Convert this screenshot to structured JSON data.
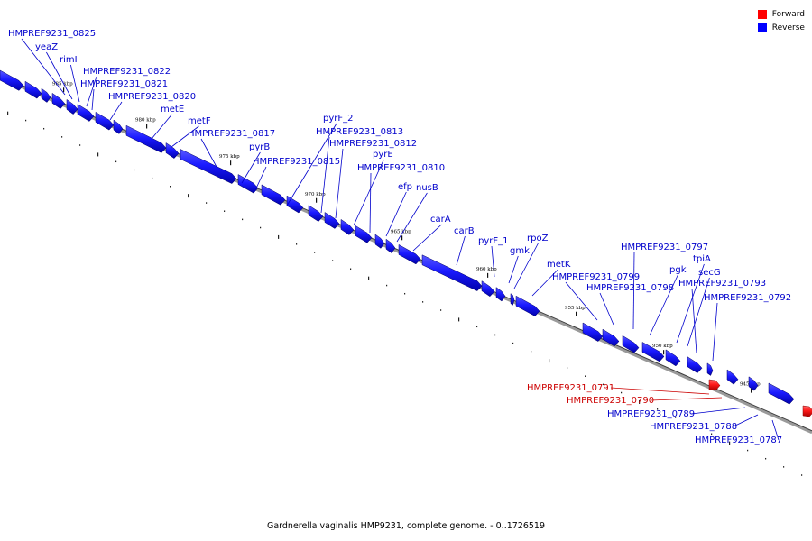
{
  "caption": "Gardnerella vaginalis HMP9231, complete genome. - 0..1726519",
  "legend": [
    {
      "label": "Forward",
      "color": "#ff0000"
    },
    {
      "label": "Reverse",
      "color": "#0000ff"
    }
  ],
  "scale_labels": [
    "985 kbp",
    "980 kbp",
    "975 kbp",
    "970 kbp",
    "965 kbp",
    "960 kbp",
    "955 kbp",
    "950 kbp",
    "945 kbp"
  ],
  "genes": [
    {
      "name": "HMPREF9231_0825",
      "strand": "reverse"
    },
    {
      "name": "yeaZ",
      "strand": "reverse"
    },
    {
      "name": "rimI",
      "strand": "reverse"
    },
    {
      "name": "HMPREF9231_0822",
      "strand": "reverse"
    },
    {
      "name": "HMPREF9231_0821",
      "strand": "reverse"
    },
    {
      "name": "HMPREF9231_0820",
      "strand": "reverse"
    },
    {
      "name": "metE",
      "strand": "reverse"
    },
    {
      "name": "metF",
      "strand": "reverse"
    },
    {
      "name": "HMPREF9231_0817",
      "strand": "reverse"
    },
    {
      "name": "pyrB",
      "strand": "reverse"
    },
    {
      "name": "HMPREF9231_0815",
      "strand": "reverse"
    },
    {
      "name": "pyrF_2",
      "strand": "reverse"
    },
    {
      "name": "HMPREF9231_0813",
      "strand": "reverse"
    },
    {
      "name": "HMPREF9231_0812",
      "strand": "reverse"
    },
    {
      "name": "pyrE",
      "strand": "reverse"
    },
    {
      "name": "HMPREF9231_0810",
      "strand": "reverse"
    },
    {
      "name": "efp",
      "strand": "reverse"
    },
    {
      "name": "nusB",
      "strand": "reverse"
    },
    {
      "name": "carA",
      "strand": "reverse"
    },
    {
      "name": "carB",
      "strand": "reverse"
    },
    {
      "name": "pyrF_1",
      "strand": "reverse"
    },
    {
      "name": "gmk",
      "strand": "reverse"
    },
    {
      "name": "rpoZ",
      "strand": "reverse"
    },
    {
      "name": "metK",
      "strand": "reverse"
    },
    {
      "name": "HMPREF9231_0799",
      "strand": "reverse"
    },
    {
      "name": "HMPREF9231_0798",
      "strand": "reverse"
    },
    {
      "name": "HMPREF9231_0797",
      "strand": "reverse"
    },
    {
      "name": "pgk",
      "strand": "reverse"
    },
    {
      "name": "tpiA",
      "strand": "reverse"
    },
    {
      "name": "secG",
      "strand": "reverse"
    },
    {
      "name": "HMPREF9231_0793",
      "strand": "reverse"
    },
    {
      "name": "HMPREF9231_0792",
      "strand": "reverse"
    },
    {
      "name": "HMPREF9231_0791",
      "strand": "forward"
    },
    {
      "name": "HMPREF9231_0790",
      "strand": "forward"
    },
    {
      "name": "HMPREF9231_0789",
      "strand": "reverse"
    },
    {
      "name": "HMPREF9231_0788",
      "strand": "reverse"
    },
    {
      "name": "HMPREF9231_0787",
      "strand": "reverse"
    }
  ]
}
